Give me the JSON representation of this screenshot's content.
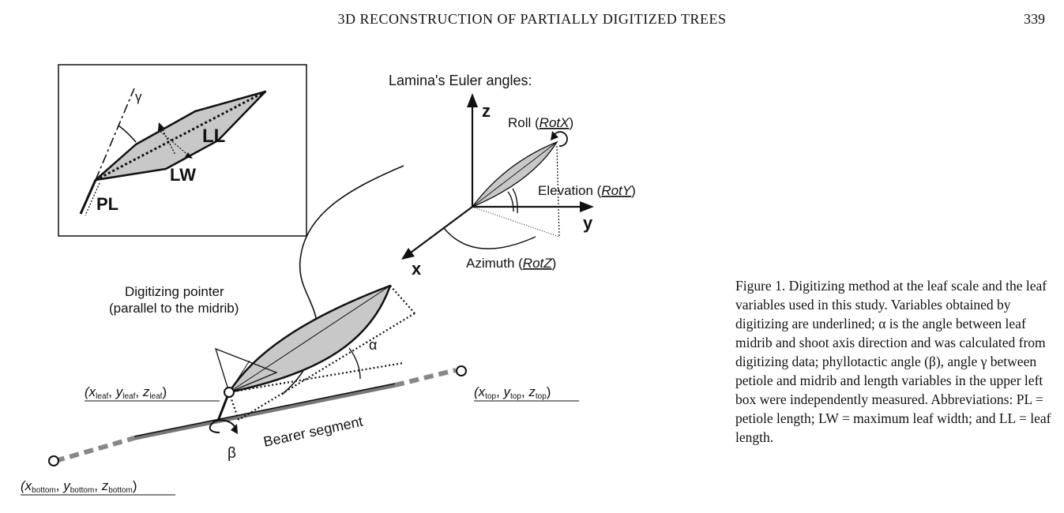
{
  "header": {
    "running_title": "3D RECONSTRUCTION OF PARTIALLY DIGITIZED TREES",
    "page_number": "339"
  },
  "figure": {
    "inset": {
      "angle_gamma": "γ",
      "ll": "LL",
      "lw": "LW",
      "pl": "PL"
    },
    "euler_title": "Lamina's Euler angles:",
    "axes": {
      "z": "z",
      "y": "y",
      "x": "x"
    },
    "roll": {
      "text": "Roll (",
      "var": "RotX",
      "close": ")"
    },
    "elevation": {
      "text": "Elevation (",
      "var": "RotY",
      "close": ")"
    },
    "azimuth": {
      "text": "Azimuth (",
      "var": "RotZ",
      "close": ")"
    },
    "pointer_line1": "Digitizing pointer",
    "pointer_line2": "(parallel to the midrib)",
    "alpha": "α",
    "beta": "β",
    "bearer": "Bearer segment",
    "coord_leaf": {
      "x": "x",
      "y": "y",
      "z": "z",
      "sub": "leaf"
    },
    "coord_top": {
      "x": "x",
      "y": "y",
      "z": "z",
      "sub": "top"
    },
    "coord_bottom": {
      "x": "x",
      "y": "y",
      "z": "z",
      "sub": "bottom"
    }
  },
  "caption": {
    "text": "Figure 1. Digitizing method at the leaf scale and the leaf variables used in this study. Variables obtained by digitizing are underlined; α is the angle between leaf midrib and shoot axis direction and was calculated from digitizing data; phyllotactic angle (β), angle γ between petiole and midrib and length variables in the upper left box were independently measured. Abbreviations: PL = petiole length; LW = maximum leaf width; and LL = leaf length."
  }
}
